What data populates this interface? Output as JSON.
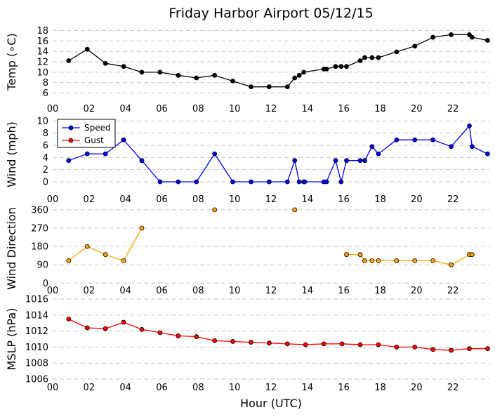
{
  "chart_data": {
    "type": "line",
    "title": "Friday Harbor Airport 05/12/15",
    "xlabel": "Hour (UTC)",
    "x_tick_labels": [
      "00",
      "02",
      "04",
      "06",
      "08",
      "10",
      "12",
      "14",
      "16",
      "18",
      "20",
      "22"
    ],
    "xlim_hours": [
      0,
      24
    ],
    "grid": "horizontal dashed",
    "panels": [
      {
        "ylabel": "Temp (∘C)",
        "ylim": [
          5,
          19
        ],
        "yticks": [
          6,
          8,
          10,
          12,
          14,
          16,
          18
        ],
        "series": [
          {
            "color": "#000000",
            "points": [
              [
                0.88,
                12.2
              ],
              [
                1.9,
                14.4
              ],
              [
                2.9,
                11.7
              ],
              [
                3.9,
                11.1
              ],
              [
                4.9,
                10.0
              ],
              [
                5.9,
                10.0
              ],
              [
                6.9,
                9.4
              ],
              [
                7.9,
                8.9
              ],
              [
                8.9,
                9.4
              ],
              [
                9.9,
                8.3
              ],
              [
                10.9,
                7.2
              ],
              [
                11.9,
                7.2
              ],
              [
                12.9,
                7.2
              ],
              [
                13.3,
                8.9
              ],
              [
                13.55,
                9.4
              ],
              [
                13.8,
                10.0
              ],
              [
                14.9,
                10.6
              ],
              [
                15.05,
                10.6
              ],
              [
                15.55,
                11.1
              ],
              [
                15.85,
                11.1
              ],
              [
                16.15,
                11.1
              ],
              [
                16.9,
                12.2
              ],
              [
                17.15,
                12.8
              ],
              [
                17.55,
                12.8
              ],
              [
                17.9,
                12.8
              ],
              [
                18.9,
                13.9
              ],
              [
                19.9,
                15.0
              ],
              [
                20.9,
                16.7
              ],
              [
                21.9,
                17.2
              ],
              [
                22.9,
                17.2
              ],
              [
                23.05,
                16.7
              ],
              [
                23.9,
                16.1
              ]
            ]
          }
        ]
      },
      {
        "ylabel": "Wind (mph)",
        "ylim": [
          -1.5,
          10.5
        ],
        "yticks": [
          0,
          2,
          4,
          6,
          8,
          10
        ],
        "legend": {
          "position": "top-left",
          "entries": [
            {
              "label": "Speed",
              "color": "#0000ff"
            },
            {
              "label": "Gust",
              "color": "#ff0000"
            }
          ]
        },
        "series": [
          {
            "name": "Speed",
            "color": "#0000ff",
            "points": [
              [
                0.88,
                3.5
              ],
              [
                1.9,
                4.6
              ],
              [
                2.9,
                4.6
              ],
              [
                3.9,
                6.9
              ],
              [
                4.9,
                3.5
              ],
              [
                5.9,
                0
              ],
              [
                6.9,
                0
              ],
              [
                7.9,
                0
              ],
              [
                8.9,
                4.6
              ],
              [
                9.9,
                0
              ],
              [
                10.9,
                0
              ],
              [
                11.9,
                0
              ],
              [
                12.9,
                0
              ],
              [
                13.3,
                3.5
              ],
              [
                13.55,
                0
              ],
              [
                13.8,
                0
              ],
              [
                13.85,
                0
              ],
              [
                14.9,
                0
              ],
              [
                15.05,
                0
              ],
              [
                15.55,
                3.5
              ],
              [
                15.85,
                0
              ],
              [
                16.15,
                3.5
              ],
              [
                16.9,
                3.5
              ],
              [
                17.15,
                3.5
              ],
              [
                17.55,
                5.8
              ],
              [
                17.9,
                4.6
              ],
              [
                18.9,
                6.9
              ],
              [
                19.9,
                6.9
              ],
              [
                20.9,
                6.9
              ],
              [
                21.9,
                5.8
              ],
              [
                22.9,
                9.2
              ],
              [
                23.05,
                5.8
              ],
              [
                23.9,
                4.6
              ]
            ]
          },
          {
            "name": "Gust",
            "color": "#ff0000",
            "points": []
          }
        ]
      },
      {
        "ylabel": "Wind Direction",
        "ylim": [
          -30,
          370
        ],
        "yticks": [
          0,
          90,
          180,
          270,
          360
        ],
        "series": [
          {
            "color": "#ffa500",
            "points": [
              [
                0.88,
                110
              ],
              [
                1.9,
                180
              ],
              [
                2.9,
                140
              ],
              [
                3.9,
                110
              ],
              [
                4.9,
                270
              ],
              null,
              [
                8.9,
                360
              ],
              null,
              [
                13.3,
                360
              ],
              null,
              [
                16.15,
                140
              ],
              [
                16.9,
                140
              ],
              [
                17.15,
                110
              ],
              [
                17.55,
                110
              ],
              [
                17.9,
                110
              ],
              [
                18.9,
                110
              ],
              [
                19.9,
                110
              ],
              [
                20.9,
                110
              ],
              [
                21.9,
                90
              ],
              [
                22.9,
                140
              ],
              [
                23.05,
                140
              ]
            ]
          }
        ]
      },
      {
        "ylabel": "MSLP (hPa)",
        "ylim": [
          1006,
          1016
        ],
        "yticks": [
          1006,
          1008,
          1010,
          1012,
          1014,
          1016
        ],
        "series": [
          {
            "color": "#ff0000",
            "points": [
              [
                0.88,
                1013.5
              ],
              [
                1.9,
                1012.4
              ],
              [
                2.9,
                1012.3
              ],
              [
                3.9,
                1013.1
              ],
              [
                4.9,
                1012.2
              ],
              [
                5.9,
                1011.8
              ],
              [
                6.9,
                1011.4
              ],
              [
                7.9,
                1011.3
              ],
              [
                8.9,
                1010.8
              ],
              [
                9.9,
                1010.7
              ],
              [
                10.9,
                1010.6
              ],
              [
                11.9,
                1010.5
              ],
              [
                12.9,
                1010.4
              ],
              [
                13.9,
                1010.3
              ],
              [
                14.9,
                1010.4
              ],
              [
                15.9,
                1010.4
              ],
              [
                16.9,
                1010.3
              ],
              [
                17.9,
                1010.3
              ],
              [
                18.9,
                1010.0
              ],
              [
                19.9,
                1010.0
              ],
              [
                20.9,
                1009.7
              ],
              [
                21.9,
                1009.6
              ],
              [
                22.9,
                1009.8
              ],
              [
                23.9,
                1009.8
              ]
            ]
          }
        ]
      }
    ]
  }
}
